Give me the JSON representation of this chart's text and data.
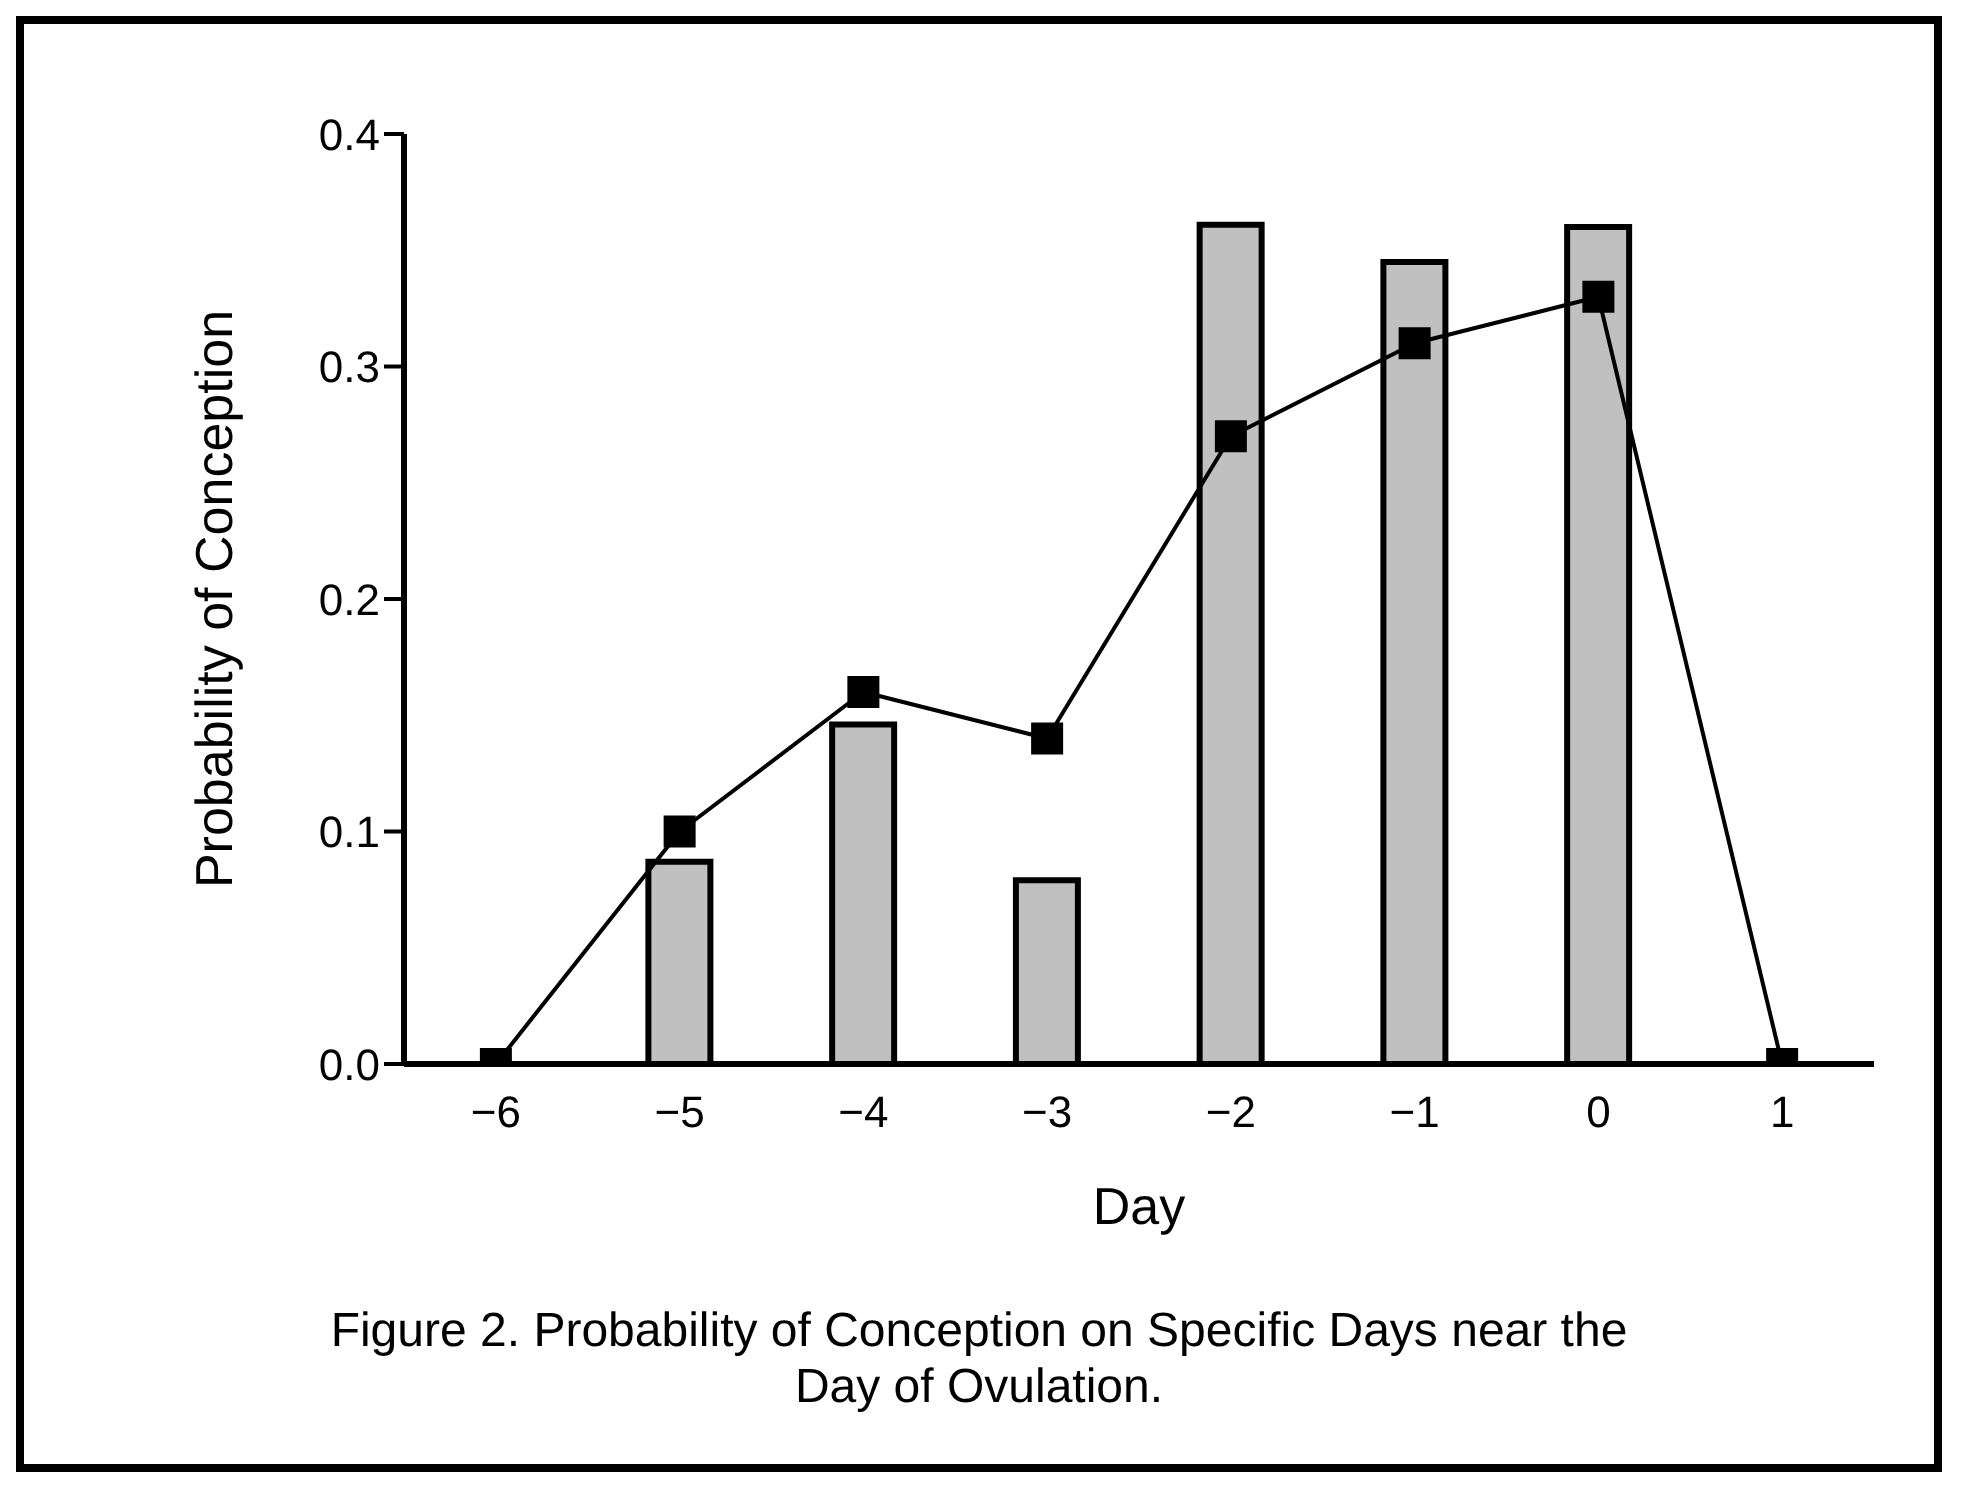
{
  "chart_data": {
    "type": "bar",
    "xlabel": "Day",
    "ylabel": "Probability of Conception",
    "categories": [
      "−6",
      "−5",
      "−4",
      "−3",
      "−2",
      "−1",
      "0",
      "1"
    ],
    "series": [
      {
        "color": "#c0c0c0",
        "values": [
          0,
          0.087,
          0.146,
          0.079,
          0.361,
          0.345,
          0.36,
          0
        ]
      },
      {
        "type": "line",
        "color": "#000000",
        "values": [
          0,
          0.1,
          0.16,
          0.14,
          0.27,
          0.31,
          0.33,
          0
        ],
        "marker": "square"
      }
    ],
    "ylim": [
      0,
      0.4
    ],
    "yticks": [
      {
        "value": 0,
        "label": "0.0"
      },
      0.1,
      0.2,
      0.3,
      0.4
    ],
    "grid": false,
    "legend": false,
    "annotations": [
      "Figure 2. Probability of Conception on Specific Days near the Day of Ovulation."
    ]
  }
}
